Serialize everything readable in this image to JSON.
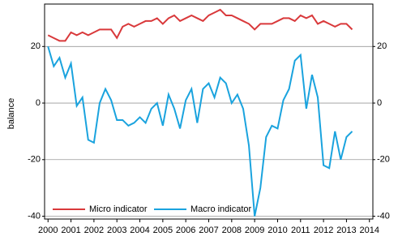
{
  "chart_data": {
    "type": "line",
    "y_label": "balance",
    "x": [
      2000,
      2000.25,
      2000.5,
      2000.75,
      2001,
      2001.25,
      2001.5,
      2001.75,
      2002,
      2002.25,
      2002.5,
      2002.75,
      2003,
      2003.25,
      2003.5,
      2003.75,
      2004,
      2004.25,
      2004.5,
      2004.75,
      2005,
      2005.25,
      2005.5,
      2005.75,
      2006,
      2006.25,
      2006.5,
      2006.75,
      2007,
      2007.25,
      2007.5,
      2007.75,
      2008,
      2008.25,
      2008.5,
      2008.75,
      2009,
      2009.25,
      2009.5,
      2009.75,
      2010,
      2010.25,
      2010.5,
      2010.75,
      2011,
      2011.25,
      2011.5,
      2011.75,
      2012,
      2012.25,
      2012.5,
      2012.75,
      2013,
      2013.25
    ],
    "series": [
      {
        "name": "Micro indicator",
        "color": "#d9393b",
        "values": [
          24,
          23,
          22,
          22,
          25,
          24,
          25,
          24,
          25,
          26,
          26,
          26,
          23,
          27,
          28,
          27,
          28,
          29,
          29,
          30,
          28,
          30,
          31,
          29,
          30,
          31,
          30,
          29,
          31,
          32,
          33,
          31,
          31,
          30,
          29,
          28,
          26,
          28,
          28,
          28,
          29,
          30,
          30,
          29,
          31,
          30,
          31,
          28,
          29,
          28,
          27,
          28,
          28,
          26
        ]
      },
      {
        "name": "Macro indicator",
        "color": "#1aa3de",
        "values": [
          20,
          13,
          16,
          9,
          14,
          -1,
          2,
          -13,
          -14,
          0,
          5,
          1,
          -6,
          -6,
          -8,
          -7,
          -5,
          -7,
          -2,
          0,
          -8,
          3,
          -2,
          -9,
          1,
          5,
          -7,
          5,
          7,
          2,
          9,
          7,
          0,
          3,
          -2,
          -15,
          -40,
          -30,
          -12,
          -8,
          -9,
          1,
          5,
          15,
          17,
          -2,
          10,
          2,
          -22,
          -23,
          -10,
          -20,
          -12,
          -10
        ]
      }
    ],
    "xlim": [
      1999.85,
      2014.15
    ],
    "xticks": [
      2000,
      2001,
      2002,
      2003,
      2004,
      2005,
      2006,
      2007,
      2008,
      2009,
      2010,
      2011,
      2012,
      2013,
      2014
    ],
    "ylim": [
      -41,
      35
    ],
    "yticks": [
      -40,
      -20,
      0,
      20
    ],
    "y2lim": [
      -41,
      35
    ],
    "y2ticks": [
      -40,
      -20,
      0,
      20
    ],
    "grid": true,
    "legend": "lower left"
  }
}
